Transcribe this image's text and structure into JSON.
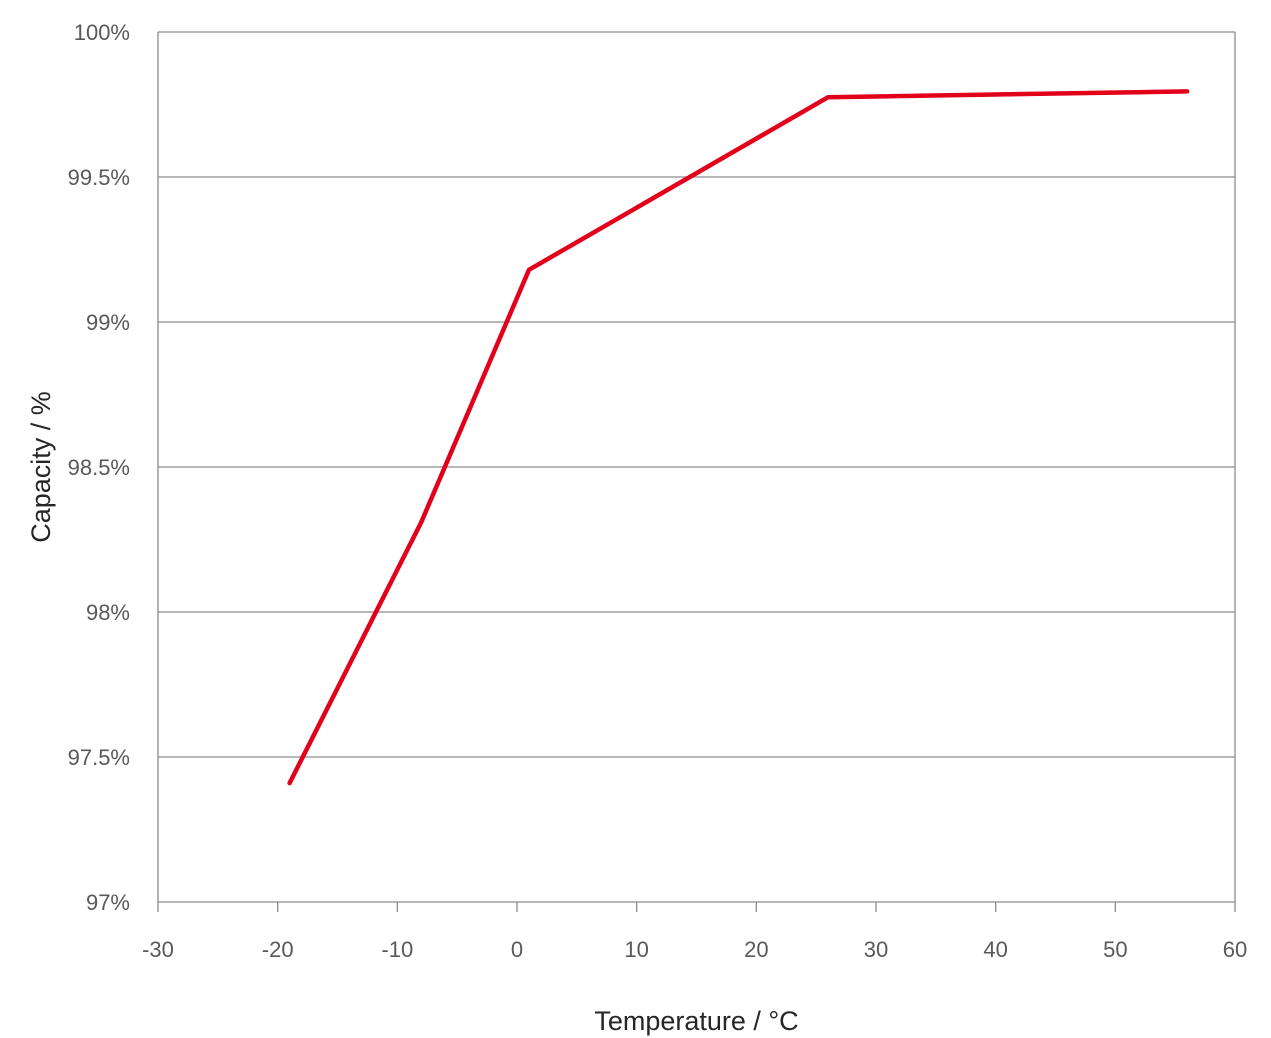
{
  "chart_data": {
    "type": "line",
    "xlabel": "Temperature / °C",
    "ylabel": "Capacity / %",
    "xlim": [
      -30,
      60
    ],
    "ylim": [
      97,
      100
    ],
    "x_ticks": [
      -30,
      -20,
      -10,
      0,
      10,
      20,
      30,
      40,
      50,
      60
    ],
    "x_tick_labels": [
      "-30",
      "-20",
      "-10",
      "0",
      "10",
      "20",
      "30",
      "40",
      "50",
      "60"
    ],
    "y_ticks": [
      97,
      97.5,
      98,
      98.5,
      99,
      99.5,
      100
    ],
    "y_tick_labels": [
      "97%",
      "97.5%",
      "98%",
      "98.5%",
      "99%",
      "99.5%",
      "100%"
    ],
    "grid": "horizontal",
    "legend": "none",
    "series": [
      {
        "color": "#e2001a",
        "x": [
          -19,
          -8,
          1,
          26,
          56
        ],
        "y": [
          97.41,
          98.31,
          99.18,
          99.775,
          99.795
        ]
      }
    ]
  }
}
